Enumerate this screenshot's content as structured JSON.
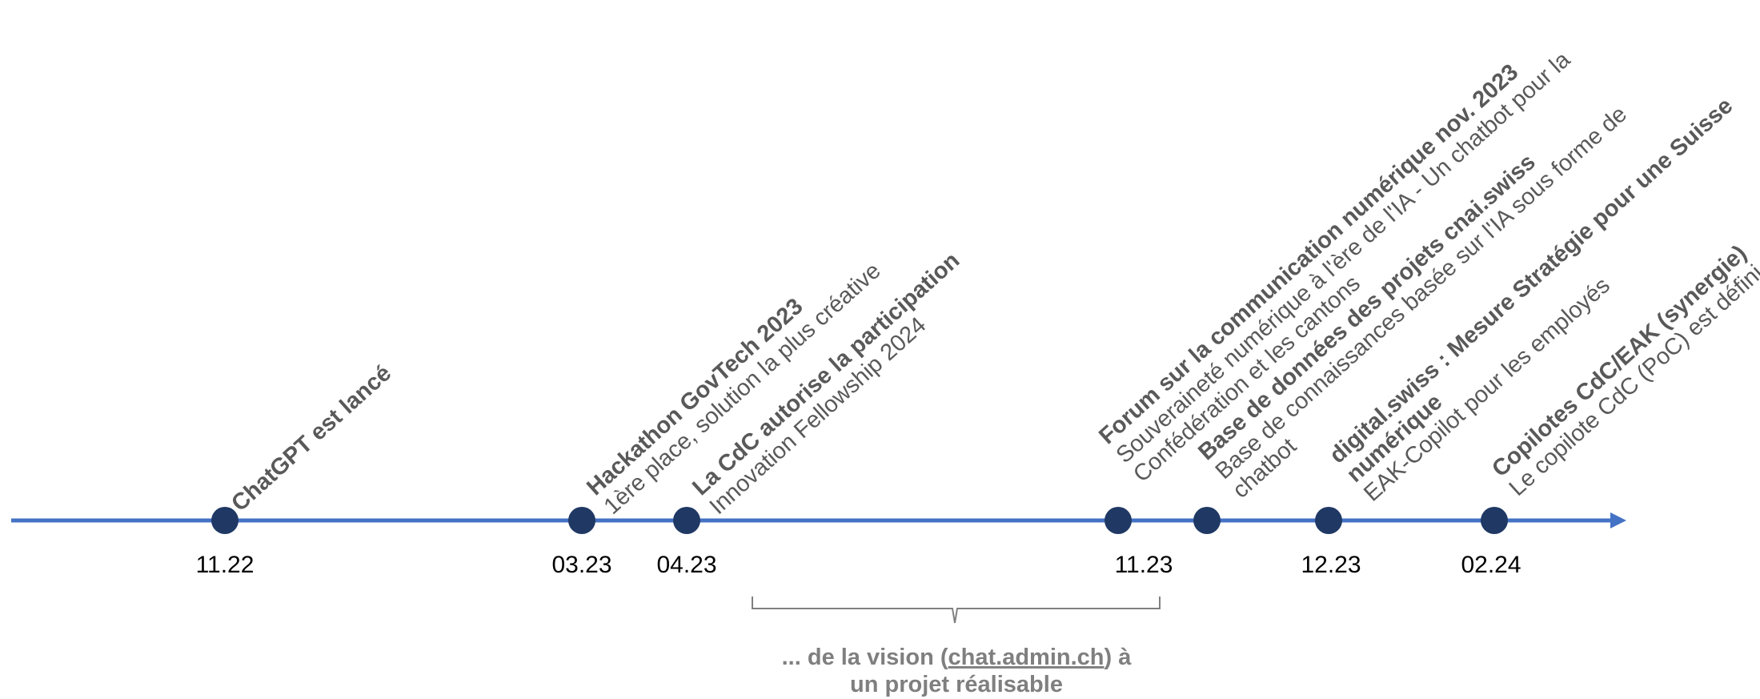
{
  "colors": {
    "axis": "#4472c4",
    "marker": "#1f3864",
    "event_text": "#595959",
    "date_text": "#000000",
    "bracket": "#808080",
    "summary_text": "#7f7f7f"
  },
  "dates": [
    "11.22",
    "03.23",
    "04.23",
    "11.23",
    "12.23",
    "02.24"
  ],
  "events": [
    {
      "title": "ChatGPT est lancé",
      "desc": []
    },
    {
      "title": "Hackathon GovTech 2023",
      "desc": [
        "1ère place, solution la plus créative"
      ]
    },
    {
      "title": "La CdC autorise la participation",
      "desc": [
        "Innovation Fellowship 2024"
      ]
    },
    {
      "title": "Forum sur la communication numérique nov. 2023",
      "desc": [
        "Souveraineté numérique à l'ère de l'IA - Un chatbot pour la",
        "Confédération et les cantons"
      ]
    },
    {
      "title": "Base de données des projets cnai.swiss",
      "desc": [
        "Base de connaissances basée sur l'IA sous forme de",
        "chatbot"
      ]
    },
    {
      "title": "digital.swiss : Mesure Stratégie pour une Suisse",
      "title2": "numérique",
      "desc": [
        "EAK-Copilot pour les employés"
      ]
    },
    {
      "title": "Copilotes CdC/EAK (synergie)",
      "desc": [
        "Le copilote CdC (PoC) est défini"
      ]
    }
  ],
  "summary": {
    "part1": "... de la vision (",
    "link": "chat.admin.ch",
    "part2": ") à",
    "line2": "un projet réalisable"
  }
}
